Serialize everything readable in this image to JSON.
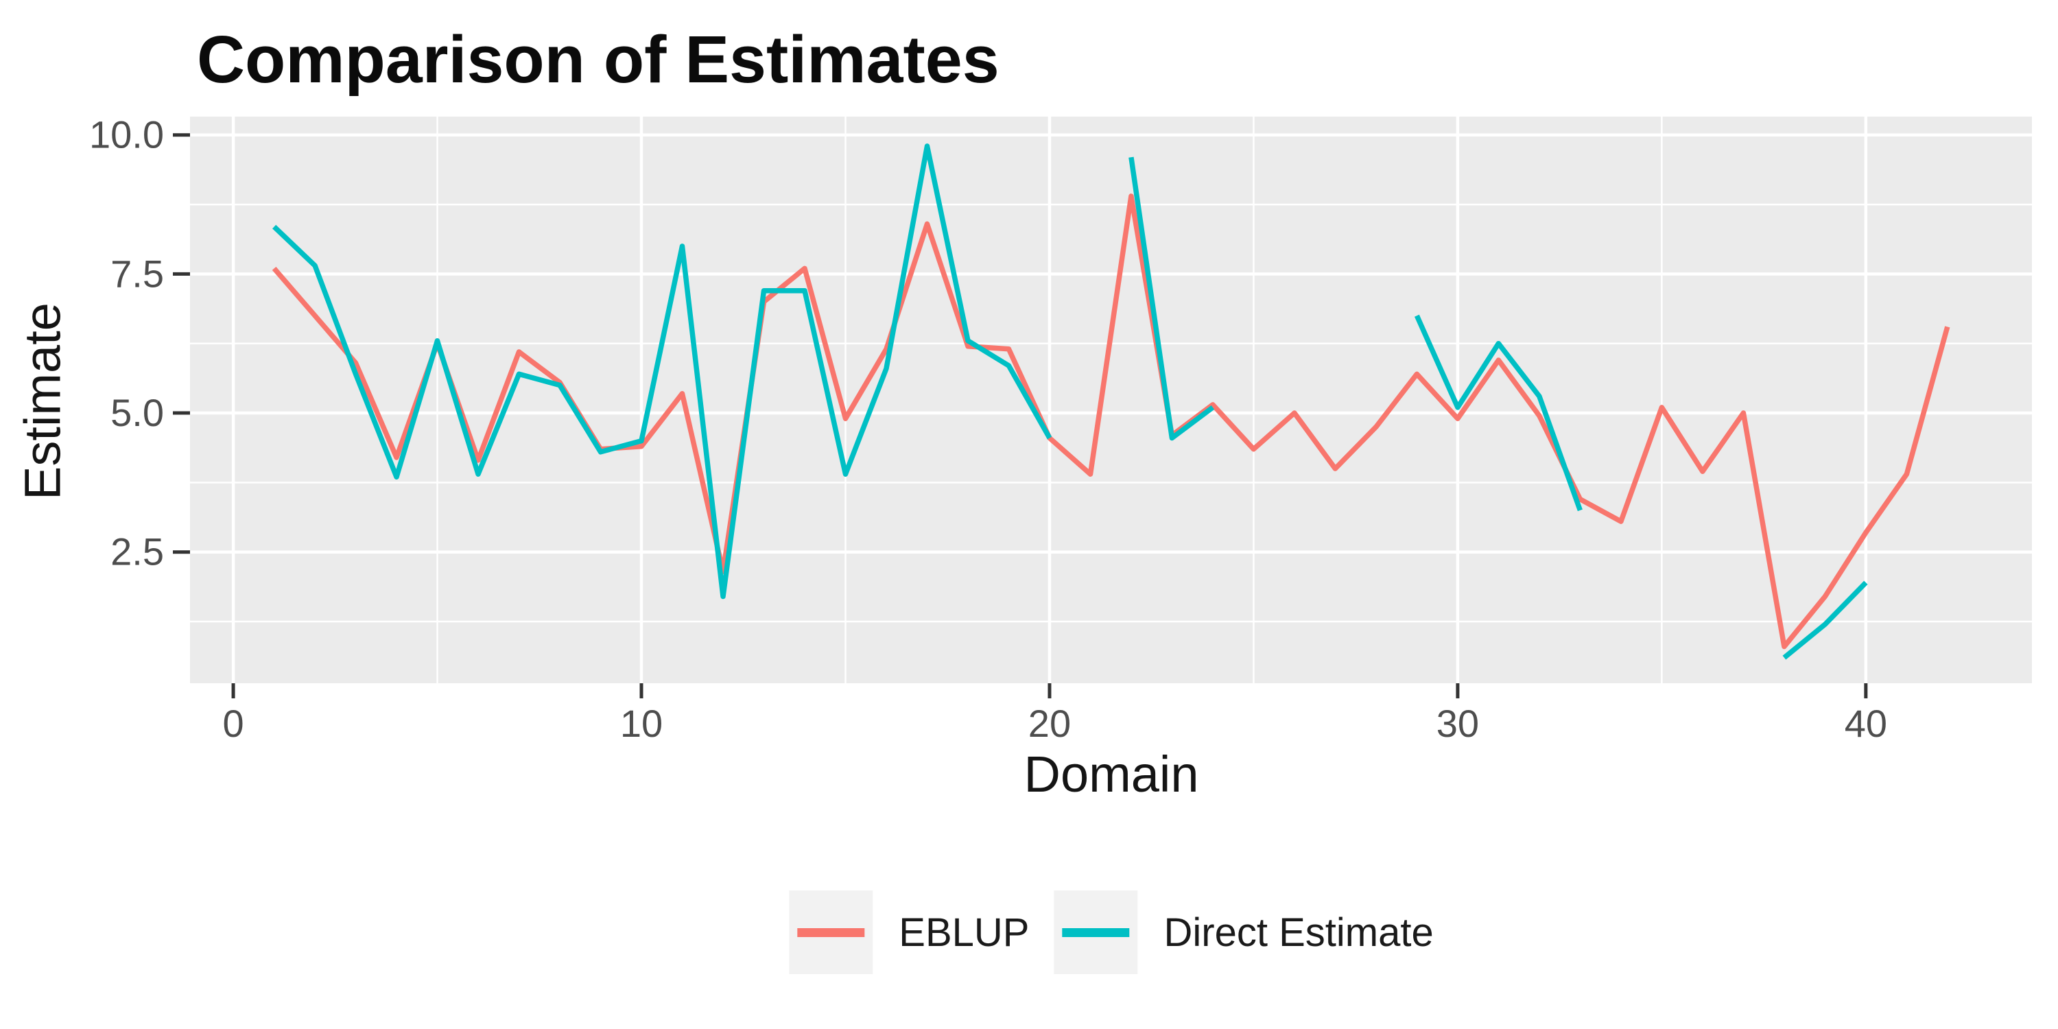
{
  "title": "Comparison of Estimates",
  "x_axis": {
    "label": "Domain",
    "tick_labels": [
      "0",
      "10",
      "20",
      "30",
      "40"
    ]
  },
  "y_axis": {
    "label": "Estimate",
    "tick_labels": [
      "2.5",
      "5.0",
      "7.5",
      "10.0"
    ]
  },
  "legend": {
    "items": [
      {
        "label": "EBLUP",
        "color": "#F8766D"
      },
      {
        "label": "Direct Estimate",
        "color": "#00BFC4"
      }
    ]
  },
  "chart_data": {
    "type": "line",
    "title": "Comparison of Estimates",
    "xlabel": "Domain",
    "ylabel": "Estimate",
    "x": [
      1,
      2,
      3,
      4,
      5,
      6,
      7,
      8,
      9,
      10,
      11,
      12,
      13,
      14,
      15,
      16,
      17,
      18,
      19,
      20,
      21,
      22,
      23,
      24,
      25,
      26,
      27,
      28,
      29,
      30,
      31,
      32,
      33,
      34,
      35,
      36,
      37,
      38,
      39,
      40,
      41,
      42
    ],
    "series": [
      {
        "name": "EBLUP",
        "color": "#F8766D",
        "values": [
          7.6,
          6.75,
          5.9,
          4.2,
          6.25,
          4.15,
          6.1,
          5.55,
          4.35,
          4.4,
          5.35,
          2.15,
          7.0,
          7.6,
          4.9,
          6.15,
          8.4,
          6.2,
          6.15,
          4.55,
          3.9,
          8.9,
          4.6,
          5.15,
          4.35,
          5.0,
          4.0,
          4.75,
          5.7,
          4.9,
          5.95,
          4.95,
          3.45,
          3.05,
          5.1,
          3.95,
          5.0,
          0.8,
          1.7,
          2.85,
          3.9,
          6.55
        ]
      },
      {
        "name": "Direct Estimate",
        "color": "#00BFC4",
        "values": [
          8.35,
          7.65,
          5.7,
          3.85,
          6.3,
          3.9,
          5.7,
          5.5,
          4.3,
          4.5,
          8.0,
          1.7,
          7.2,
          7.2,
          3.9,
          5.8,
          9.8,
          6.3,
          5.85,
          4.55,
          null,
          9.6,
          4.55,
          5.1,
          null,
          null,
          null,
          null,
          6.75,
          5.1,
          6.25,
          5.3,
          3.25,
          null,
          null,
          null,
          null,
          0.6,
          1.2,
          1.95,
          null,
          null
        ]
      }
    ],
    "x_breaks": [
      0,
      10,
      20,
      30,
      40
    ],
    "x_minor_breaks": [
      5,
      15,
      25,
      35
    ],
    "y_breaks": [
      2.5,
      5.0,
      7.5,
      10.0
    ],
    "y_minor_breaks": [
      1.25,
      3.75,
      6.25,
      8.75
    ],
    "xlim": [
      -1.06,
      44.07
    ],
    "ylim": [
      0.14,
      10.33
    ],
    "grid": true,
    "legend_position": "bottom",
    "panel_bg": "#EBEBEB",
    "grid_color": "#FFFFFF",
    "tick_color": "#333333",
    "tick_label_color": "#4D4D4D",
    "line_width": 7.5
  }
}
